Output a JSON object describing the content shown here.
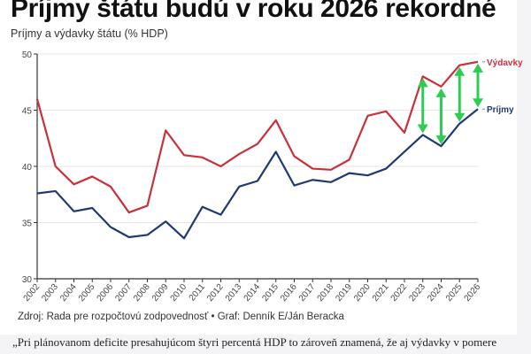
{
  "header": {
    "title": "Príjmy štátu budú v roku 2026 rekordné",
    "subtitle": "Príjmy a výdavky štátu (% HDP)"
  },
  "footer": {
    "source": "Zdroj: Rada pre rozpočtovú zodpovednosť • Graf: Denník E/Ján Beracka",
    "quote": "„Pri plánovanom deficite presahujúcom štyri percentá HDP to zároveň znamená, že aj výdavky v pomere"
  },
  "chart_data": {
    "type": "line",
    "title": "Príjmy a výdavky štátu (% HDP)",
    "x": [
      "2002",
      "2003",
      "2004",
      "2005",
      "2006",
      "2007",
      "2008",
      "2009",
      "2010",
      "2011",
      "2012",
      "2013",
      "2014",
      "2015",
      "2016",
      "2017",
      "2018",
      "2019",
      "2020",
      "2021",
      "2022",
      "2023",
      "2024",
      "2025",
      "2026"
    ],
    "ylim": [
      30,
      50
    ],
    "yticks": [
      "30",
      "35",
      "40",
      "45",
      "50"
    ],
    "grid": true,
    "series": [
      {
        "name": "Výdavky",
        "color": "#c8313b",
        "values": [
          46,
          40,
          38.4,
          39.1,
          38.2,
          35.9,
          36.5,
          43.2,
          41,
          40.8,
          40,
          41.1,
          42,
          44.1,
          40.9,
          39.8,
          39.7,
          40.6,
          44.5,
          44.9,
          43,
          48,
          47.1,
          49,
          49.3
        ]
      },
      {
        "name": "Príjmy",
        "color": "#1f3a70",
        "values": [
          37.6,
          37.8,
          36,
          36.3,
          34.6,
          33.7,
          33.9,
          35.1,
          33.6,
          36.4,
          35.7,
          38.2,
          38.7,
          41.3,
          38.3,
          38.8,
          38.6,
          39.4,
          39.2,
          39.8,
          41.3,
          42.8,
          41.8,
          43.8,
          45.1
        ]
      }
    ],
    "annotations": {
      "gap_arrows_years": [
        "2023",
        "2024",
        "2025",
        "2026"
      ],
      "arrow_color": "#2ecc52"
    }
  }
}
